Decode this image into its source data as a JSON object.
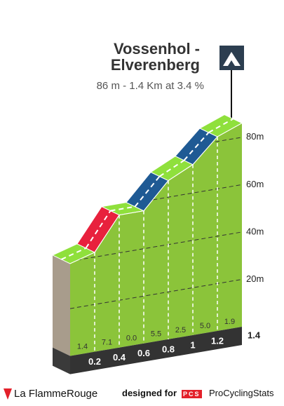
{
  "chart_data": {
    "type": "profile",
    "title": "Vossenhol - Elverenberg",
    "subtitle": "86 m - 1.4 Km at 3.4 %",
    "x": [
      0,
      0.2,
      0.4,
      0.6,
      0.8,
      1.0,
      1.2,
      1.4
    ],
    "elevations": [
      39,
      42,
      56,
      56,
      67,
      72,
      82,
      86
    ],
    "gradients": [
      1.4,
      7.1,
      0,
      5.5,
      2.5,
      5.0,
      1.9
    ],
    "value_labels": [
      "1.4",
      "7.1",
      "0.0",
      "5.5",
      "2.5",
      "5.0",
      "1.9"
    ],
    "segment_colors": [
      "#8fe03c",
      "#e8213d",
      "#8fe03c",
      "#1f5a94",
      "#8fe03c",
      "#1f5a94",
      "#8fe03c"
    ],
    "xlim": [
      0,
      1.4
    ],
    "xticks": [
      0.2,
      0.4,
      0.6,
      0.8,
      1.0,
      1.2,
      1.4
    ],
    "ylim": [
      0,
      90
    ],
    "yticks": [
      {
        "value": 20,
        "label": "20m"
      },
      {
        "value": 40,
        "label": "40m"
      },
      {
        "value": 60,
        "label": "60m"
      },
      {
        "value": 80,
        "label": "80m"
      }
    ],
    "grid": true
  },
  "footer": {
    "brand": "La FlammeRouge",
    "designed_for": "designed for",
    "pcs": "PCS",
    "site": "ProCyclingStats"
  }
}
